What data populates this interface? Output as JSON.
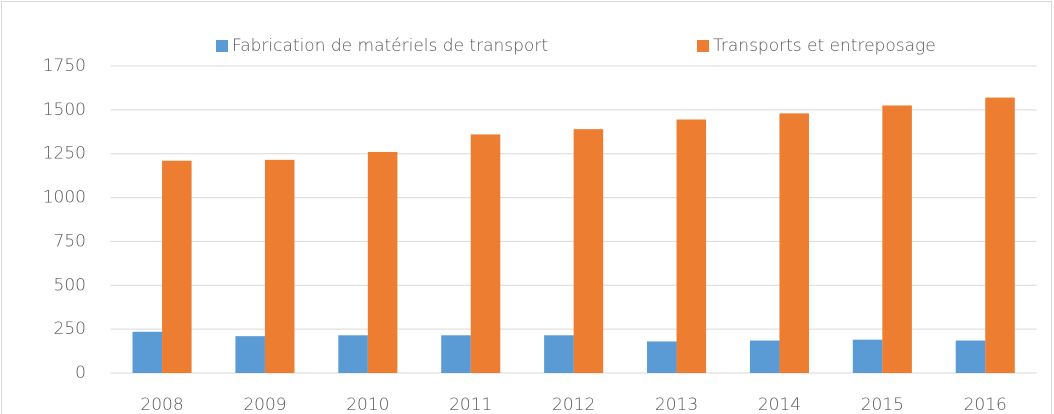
{
  "chart_data": {
    "type": "bar",
    "categories": [
      "2008",
      "2009",
      "2010",
      "2011",
      "2012",
      "2013",
      "2014",
      "2015",
      "2016"
    ],
    "series": [
      {
        "name": "Fabrication de matériels de transport",
        "color": "#5b9bd5",
        "values": [
          235,
          210,
          215,
          215,
          215,
          180,
          185,
          190,
          185
        ]
      },
      {
        "name": "Transports et entreposage",
        "color": "#ed7d31",
        "values": [
          1210,
          1215,
          1260,
          1360,
          1390,
          1445,
          1480,
          1525,
          1570
        ]
      }
    ],
    "ylim": [
      0,
      1750
    ],
    "yticks": [
      0,
      250,
      500,
      750,
      1000,
      1250,
      1500,
      1750
    ],
    "grid": true,
    "legend": "top"
  }
}
